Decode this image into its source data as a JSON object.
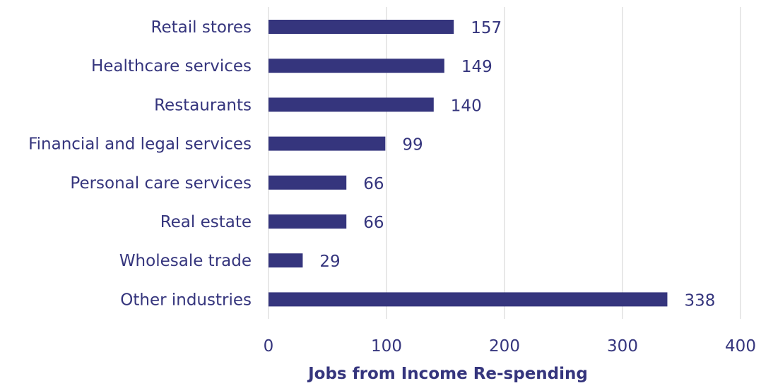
{
  "chart_data": {
    "type": "bar",
    "orientation": "horizontal",
    "categories": [
      "Retail stores",
      "Healthcare services",
      "Restaurants",
      "Financial and legal services",
      "Personal care services",
      "Real estate",
      "Wholesale trade",
      "Other industries"
    ],
    "values": [
      157,
      149,
      140,
      99,
      66,
      66,
      29,
      338
    ],
    "value_labels": [
      "157",
      "149",
      "140",
      "99",
      "66",
      "66",
      "29",
      "338"
    ],
    "xlabel": "Jobs from Income Re-spending",
    "xlim": [
      0,
      400
    ],
    "xticks": [
      0,
      100,
      200,
      300,
      400
    ],
    "xtick_labels": [
      "0",
      "100",
      "200",
      "300",
      "400"
    ],
    "grid": "vertical",
    "legend": "none",
    "colors": {
      "bar": "#35357d",
      "text": "#35357d",
      "grid": "#d9d9d9"
    }
  }
}
